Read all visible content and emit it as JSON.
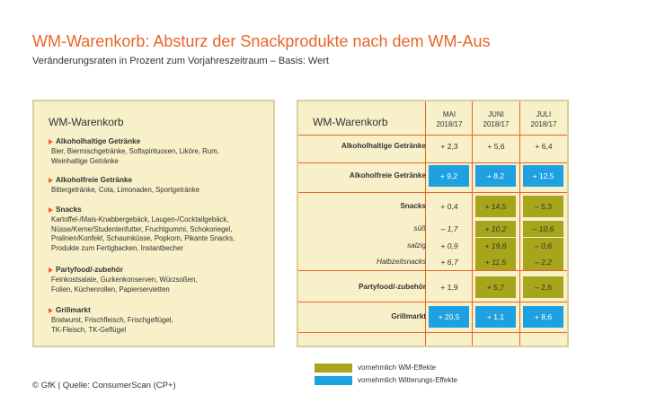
{
  "title": "WM-Warenkorb: Absturz der Snackprodukte nach dem WM-Aus",
  "subtitle": "Veränderungsraten in Prozent zum Vorjahreszeitraum – Basis: Wert",
  "left_panel": {
    "title": "WM-Warenkorb",
    "categories": [
      {
        "name": "Alkoholhaltige Getränke",
        "items": [
          "Bier, Biermischgetränke, Softspirituosen, Liköre, Rum,",
          "Weinhaltige Getränke"
        ]
      },
      {
        "name": "Alkoholfreie Getränke",
        "items": [
          "Bittergetränke, Cola, Limonaden, Sportgetränke"
        ]
      },
      {
        "name": "Snacks",
        "items": [
          "Kartoffel-/Mais-Knabbergebäck, Laugen-/Cocktailgebäck,",
          "Nüsse/Kerne/Studentenfutter, Fruchtgummi, Schokoriegel,",
          "Pralinen/Konfekt, Schaumküsse, Popkorn, Pikante Snacks,",
          "Produkte zum Fertigbacken, Instantbecher"
        ]
      },
      {
        "name": "Partyfood/-zubehör",
        "items": [
          "Feinkostsalate, Gurkenkonserven, Würzsoßen,",
          "Folien, Küchenrollen, Papierservietten"
        ]
      },
      {
        "name": "Grillmarkt",
        "items": [
          "Bratwurst, Frischfleisch, Frischgeflügel,",
          "TK-Fleisch, TK-Geflügel"
        ]
      }
    ]
  },
  "chart_data": {
    "type": "table",
    "title": "WM-Warenkorb",
    "columns": [
      {
        "line1": "MAI",
        "line2": "2018/17"
      },
      {
        "line1": "JUNI",
        "line2": "2018/17"
      },
      {
        "line1": "JULI",
        "line2": "2018/17"
      }
    ],
    "rows": [
      {
        "label": "Alkoholhaltige Getränke",
        "values": [
          "+ 2,3",
          "+ 5,6",
          "+ 6,4"
        ],
        "numeric": [
          2.3,
          5.6,
          6.4
        ],
        "highlight": [
          "",
          "",
          ""
        ]
      },
      {
        "label": "Alkoholfreie Getränke",
        "values": [
          "+ 9,2",
          "+ 8,2",
          "+ 12,5"
        ],
        "numeric": [
          9.2,
          8.2,
          12.5
        ],
        "highlight": [
          "blue",
          "blue",
          "blue"
        ]
      },
      {
        "label": "Snacks",
        "values": [
          "+ 0,4",
          "+ 14,5",
          "– 5,3"
        ],
        "numeric": [
          0.4,
          14.5,
          -5.3
        ],
        "highlight": [
          "",
          "olive",
          "olive"
        ]
      },
      {
        "label": "süß",
        "values": [
          "– 1,7",
          "+ 10,2",
          "– 10,6"
        ],
        "numeric": [
          -1.7,
          10.2,
          -10.6
        ],
        "highlight": [
          "",
          "olive",
          "olive"
        ],
        "sub": true
      },
      {
        "label": "salzig",
        "values": [
          "+ 0,9",
          "+ 19,6",
          "– 0,6"
        ],
        "numeric": [
          0.9,
          19.6,
          -0.6
        ],
        "highlight": [
          "",
          "olive",
          "olive"
        ],
        "sub": true
      },
      {
        "label": "Halbzeitsnacks",
        "values": [
          "+ 6,7",
          "+ 11,5",
          "– 2,2"
        ],
        "numeric": [
          6.7,
          11.5,
          -2.2
        ],
        "highlight": [
          "",
          "olive",
          "olive"
        ],
        "sub": true
      },
      {
        "label": "Partyfood/-zubehör",
        "values": [
          "+ 1,9",
          "+ 5,7",
          "– 2,6"
        ],
        "numeric": [
          1.9,
          5.7,
          -2.6
        ],
        "highlight": [
          "",
          "olive",
          "olive"
        ]
      },
      {
        "label": "Grillmarkt",
        "values": [
          "+ 20,5",
          "+ 1,1",
          "+ 8,6"
        ],
        "numeric": [
          20.5,
          1.1,
          8.6
        ],
        "highlight": [
          "blue",
          "blue",
          "blue"
        ]
      }
    ],
    "colors": {
      "blue": "#1ea1e0",
      "olive": "#a6a51c",
      "accent": "#e8652a"
    }
  },
  "legend": [
    {
      "label": "vornehmlich WM-Effekte",
      "color": "#a6a51c"
    },
    {
      "label": "vornehmlich Witterungs-Effekte",
      "color": "#1ea1e0"
    }
  ],
  "source": "© GfK | Quelle: ConsumerScan (CP+)"
}
